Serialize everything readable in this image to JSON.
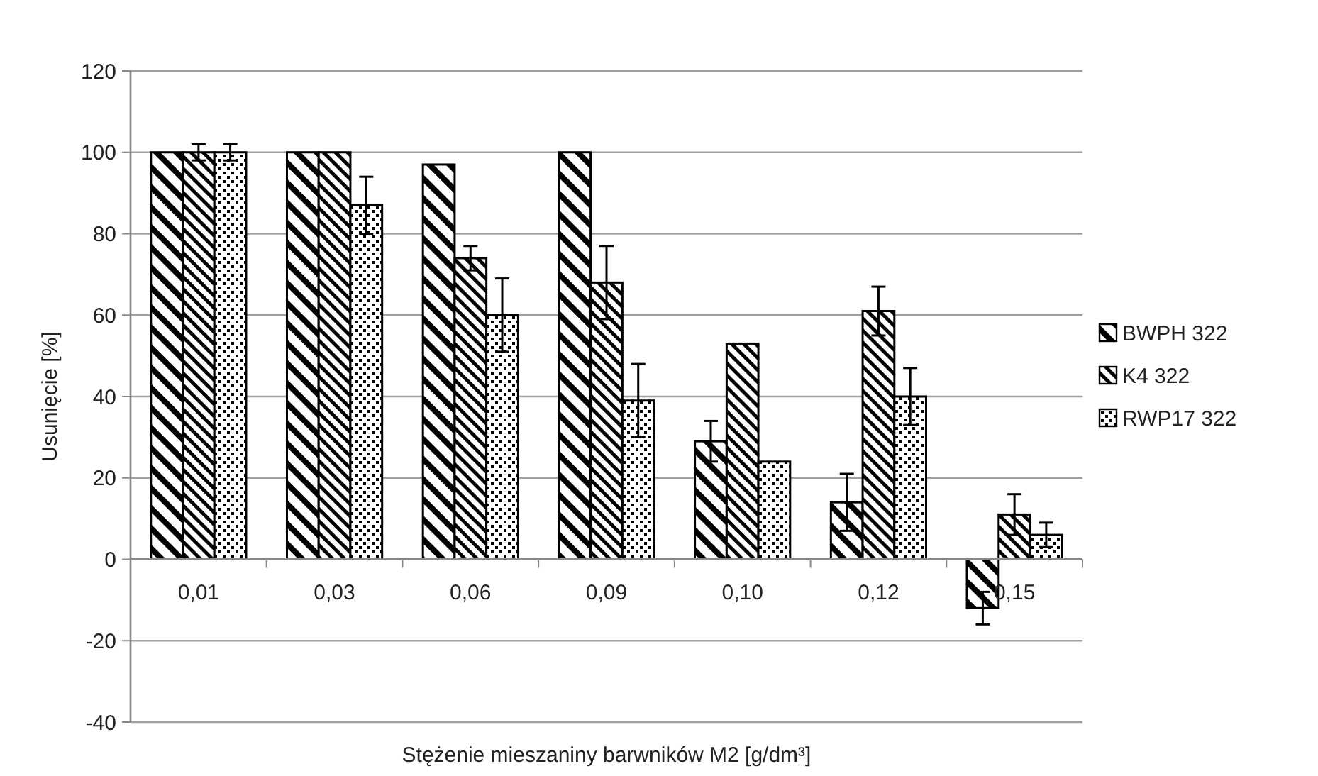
{
  "chart_data": {
    "type": "bar",
    "xlabel": "Stężenie mieszaniny barwników M2 [g/dm³]",
    "ylabel": "Usunięcie [%]",
    "categories": [
      "0,01",
      "0,03",
      "0,06",
      "0,09",
      "0,10",
      "0,12",
      "0,15"
    ],
    "series": [
      {
        "name": "BWPH 322",
        "color": "#000000",
        "values": [
          100,
          100,
          97,
          100,
          29,
          14,
          -12
        ],
        "errors": [
          null,
          null,
          null,
          null,
          5,
          7,
          4
        ]
      },
      {
        "name": "K4 322",
        "color": "#000000",
        "values": [
          100,
          100,
          74,
          68,
          53,
          61,
          11
        ],
        "errors": [
          2,
          null,
          3,
          9,
          null,
          6,
          5
        ]
      },
      {
        "name": "RWP17 322",
        "color": "#000000",
        "values": [
          100,
          87,
          60,
          39,
          24,
          40,
          6
        ],
        "errors": [
          2,
          7,
          9,
          9,
          null,
          7,
          3
        ]
      }
    ],
    "ylim": [
      -40,
      120
    ],
    "yticks": [
      -40,
      -20,
      0,
      20,
      40,
      60,
      80,
      100,
      120
    ],
    "grid": "y",
    "legend": "right"
  }
}
